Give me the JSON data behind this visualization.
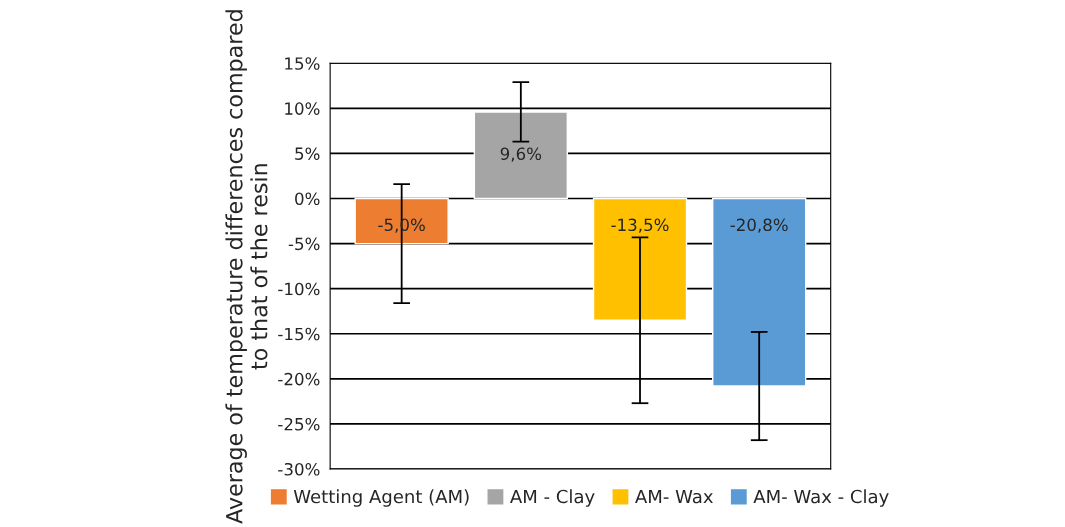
{
  "chart_data": {
    "type": "bar",
    "ylabel": "Average of temperature differences compared to that of the resin",
    "categories": [
      null,
      null,
      null,
      null
    ],
    "series": [
      {
        "name": "Wetting Agent (AM)",
        "color": "#ed7d31",
        "values": [
          -5.0,
          null,
          null,
          null
        ],
        "errors": [
          6.6,
          null,
          null,
          null
        ],
        "value_labels": [
          "-5,0%",
          null,
          null,
          null
        ]
      },
      {
        "name": "AM - Clay",
        "color": "#a5a5a5",
        "values": [
          null,
          9.6,
          null,
          null
        ],
        "errors": [
          null,
          3.3,
          null,
          null
        ],
        "value_labels": [
          null,
          "9,6%",
          null,
          null
        ]
      },
      {
        "name": "AM- Wax",
        "color": "#ffc000",
        "values": [
          null,
          null,
          -13.5,
          null
        ],
        "errors": [
          null,
          null,
          9.2,
          null
        ],
        "value_labels": [
          null,
          null,
          "-13,5%",
          null
        ]
      },
      {
        "name": "AM- Wax - Clay",
        "color": "#5b9bd5",
        "values": [
          null,
          null,
          null,
          -20.8
        ],
        "errors": [
          null,
          null,
          null,
          6.0
        ],
        "value_labels": [
          null,
          null,
          null,
          "-20,8%"
        ]
      }
    ],
    "ylim": [
      -30,
      15
    ],
    "yticks": [
      {
        "value": -30,
        "label": "-30%"
      },
      {
        "value": -25,
        "label": "-25%"
      },
      {
        "value": -20,
        "label": "-20%"
      },
      {
        "value": -15,
        "label": "-15%"
      },
      {
        "value": -10,
        "label": "-10%"
      },
      {
        "value": -5,
        "label": "-5%"
      },
      {
        "value": 0,
        "label": "0%"
      },
      {
        "value": 5,
        "label": "5%"
      },
      {
        "value": 10,
        "label": "10%"
      },
      {
        "value": 15,
        "label": "15%"
      }
    ],
    "grid": "y",
    "legend": "bottom",
    "tick_labels": "y"
  }
}
